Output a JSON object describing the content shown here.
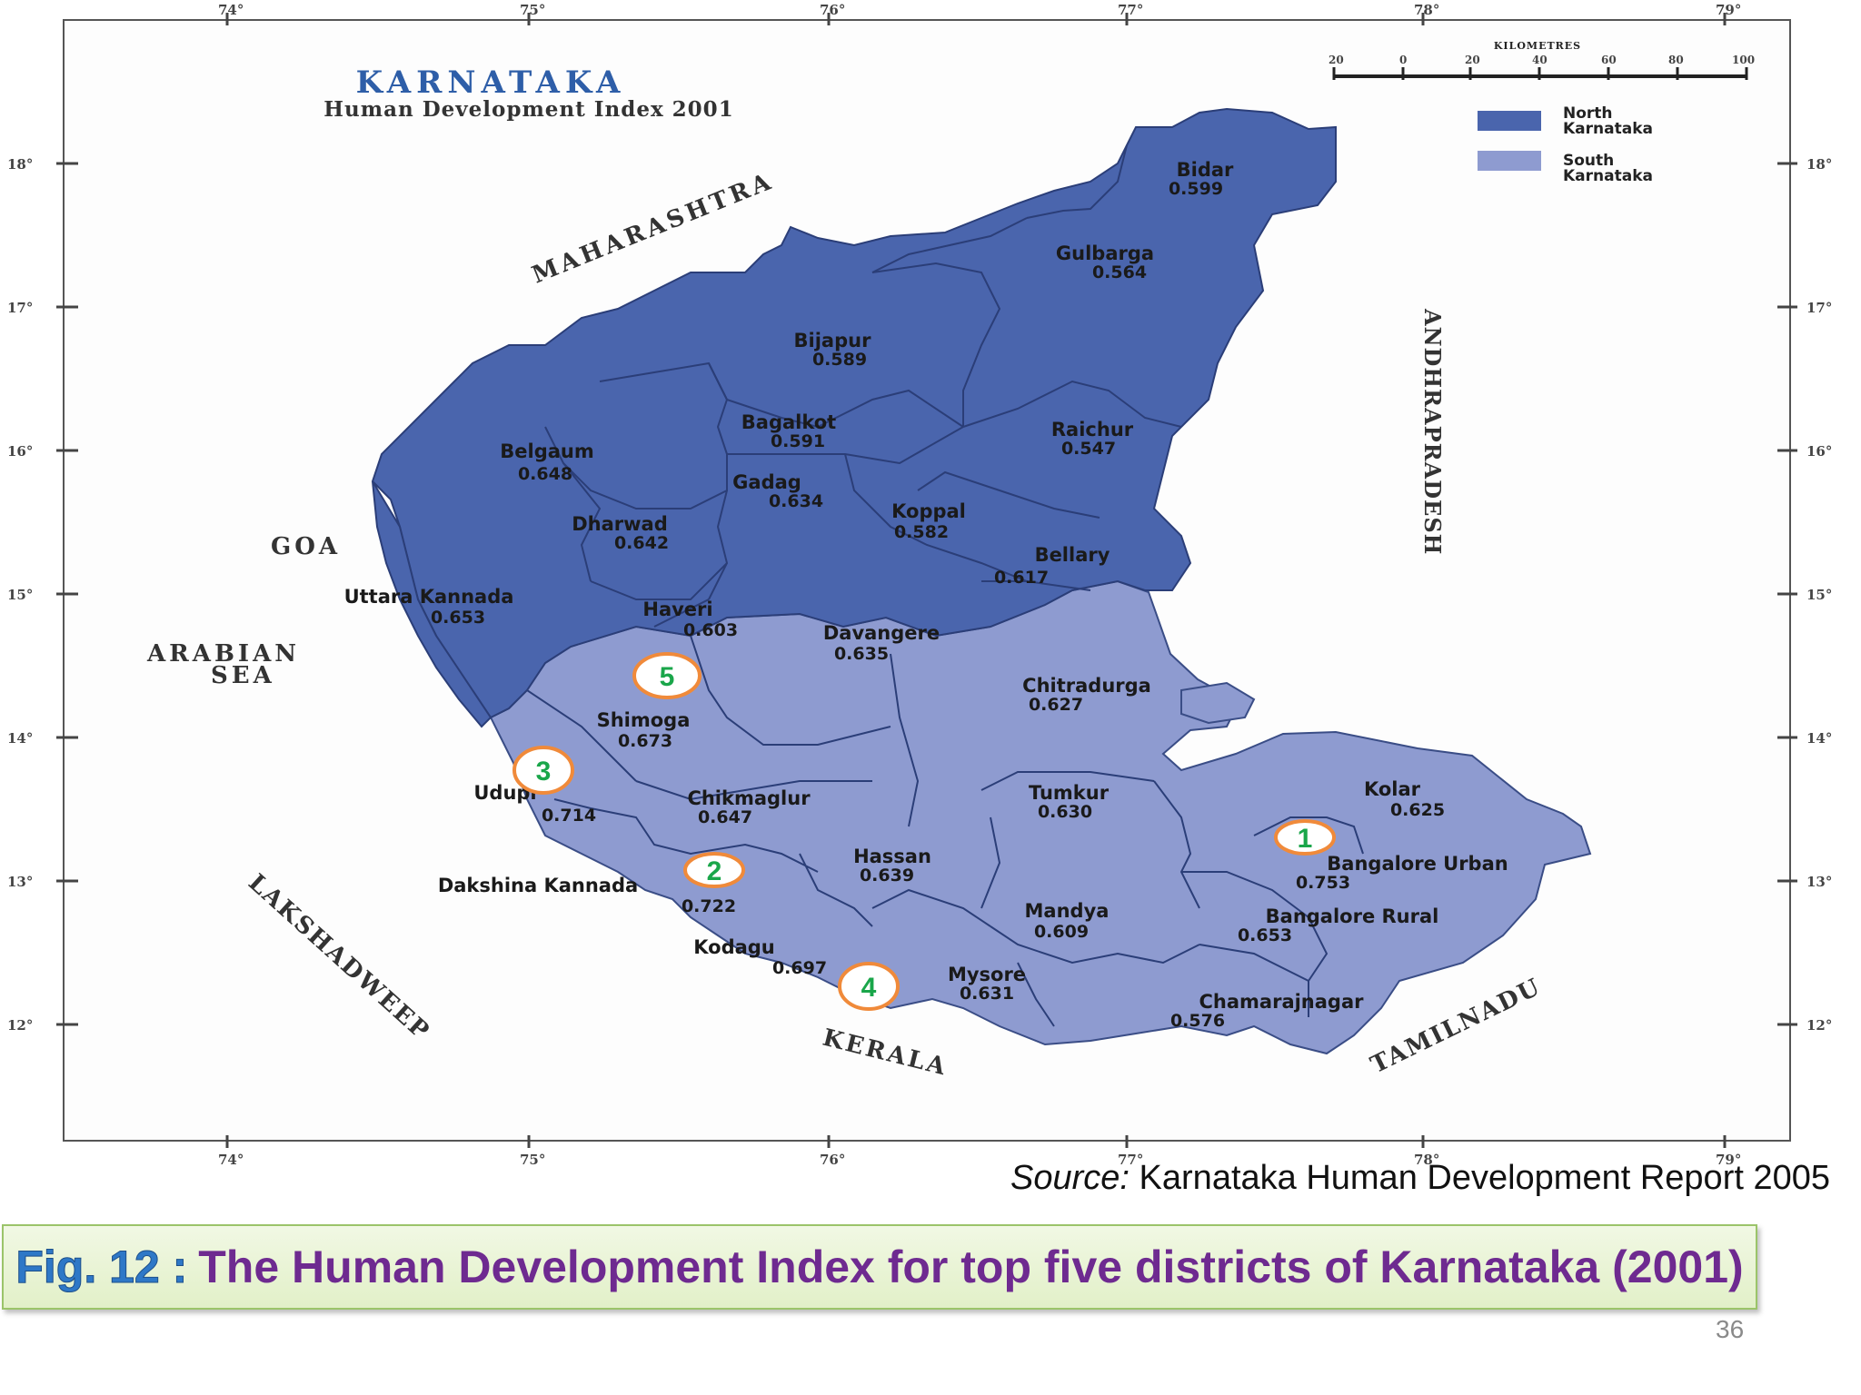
{
  "map": {
    "title": "KARNATAKA",
    "subtitle": "Human Development Index 2001",
    "scale_bar": {
      "title": "KILOMETRES",
      "labels": [
        "20",
        "0",
        "20",
        "40",
        "60",
        "80",
        "100"
      ]
    },
    "longitude_labels": [
      "74°",
      "75°",
      "76°",
      "77°",
      "78°",
      "79°"
    ],
    "latitude_labels": [
      "18°",
      "17°",
      "16°",
      "15°",
      "14°",
      "13°",
      "12°"
    ],
    "legend": [
      {
        "line1": "North",
        "line2": "Karnataka",
        "color": "#4a65ad"
      },
      {
        "line1": "South",
        "line2": "Karnataka",
        "color": "#8e9bd0"
      }
    ],
    "neighbours": {
      "maharashtra": "MAHARASHTRA",
      "andhra": "ANDHRAPRADESH",
      "goa": "GOA",
      "arabian_sea_1": "ARABIAN",
      "arabian_sea_2": "SEA",
      "lakshadweep": "LAKSHADWEEP",
      "kerala": "KERALA",
      "tamilnadu": "TAMILNADU"
    },
    "districts": [
      {
        "id": "bidar",
        "name": "Bidar",
        "hdi": "0.599",
        "region": "north"
      },
      {
        "id": "gulbarga",
        "name": "Gulbarga",
        "hdi": "0.564",
        "region": "north"
      },
      {
        "id": "bijapur",
        "name": "Bijapur",
        "hdi": "0.589",
        "region": "north"
      },
      {
        "id": "bagalkot",
        "name": "Bagalkot",
        "hdi": "0.591",
        "region": "north"
      },
      {
        "id": "raichur",
        "name": "Raichur",
        "hdi": "0.547",
        "region": "north"
      },
      {
        "id": "belgaum",
        "name": "Belgaum",
        "hdi": "0.648",
        "region": "north"
      },
      {
        "id": "gadag",
        "name": "Gadag",
        "hdi": "0.634",
        "region": "north"
      },
      {
        "id": "dharwad",
        "name": "Dharwad",
        "hdi": "0.642",
        "region": "north"
      },
      {
        "id": "koppal",
        "name": "Koppal",
        "hdi": "0.582",
        "region": "north"
      },
      {
        "id": "bellary",
        "name": "Bellary",
        "hdi": "0.617",
        "region": "north"
      },
      {
        "id": "uttara-kannada",
        "name": "Uttara Kannada",
        "hdi": "0.653",
        "region": "north"
      },
      {
        "id": "haveri",
        "name": "Haveri",
        "hdi": "0.603",
        "region": "north"
      },
      {
        "id": "davangere",
        "name": "Davangere",
        "hdi": "0.635",
        "region": "south"
      },
      {
        "id": "chitradurga",
        "name": "Chitradurga",
        "hdi": "0.627",
        "region": "south"
      },
      {
        "id": "shimoga",
        "name": "Shimoga",
        "hdi": "0.673",
        "region": "south"
      },
      {
        "id": "udupi",
        "name": "Udupi",
        "hdi": "0.714",
        "region": "south"
      },
      {
        "id": "chikmaglur",
        "name": "Chikmaglur",
        "hdi": "0.647",
        "region": "south"
      },
      {
        "id": "tumkur",
        "name": "Tumkur",
        "hdi": "0.630",
        "region": "south"
      },
      {
        "id": "kolar",
        "name": "Kolar",
        "hdi": "0.625",
        "region": "south"
      },
      {
        "id": "hassan",
        "name": "Hassan",
        "hdi": "0.639",
        "region": "south"
      },
      {
        "id": "bangalore-urban",
        "name": "Bangalore Urban",
        "hdi": "0.753",
        "region": "south"
      },
      {
        "id": "dakshina-kannada",
        "name": "Dakshina Kannada",
        "hdi": "0.722",
        "region": "south"
      },
      {
        "id": "mandya",
        "name": "Mandya",
        "hdi": "0.609",
        "region": "south"
      },
      {
        "id": "bangalore-rural",
        "name": "Bangalore Rural",
        "hdi": "0.653",
        "region": "south"
      },
      {
        "id": "kodagu",
        "name": "Kodagu",
        "hdi": "0.697",
        "region": "south"
      },
      {
        "id": "mysore",
        "name": "Mysore",
        "hdi": "0.631",
        "region": "south"
      },
      {
        "id": "chamarajnagar",
        "name": "Chamarajnagar",
        "hdi": "0.576",
        "region": "south"
      }
    ],
    "rank_markers": [
      {
        "rank": "1",
        "district": "Bangalore Urban"
      },
      {
        "rank": "2",
        "district": "Dakshina Kannada"
      },
      {
        "rank": "3",
        "district": "Udupi"
      },
      {
        "rank": "4",
        "district": "Kodagu"
      },
      {
        "rank": "5",
        "district": "Shimoga"
      }
    ]
  },
  "source": {
    "prefix": "Source:",
    "text": "Karnataka Human Development Report 2005"
  },
  "caption": {
    "fig_label": "Fig. 12 :",
    "text": "The Human Development Index for top five districts of Karnataka (2001)"
  },
  "page_number": "36"
}
